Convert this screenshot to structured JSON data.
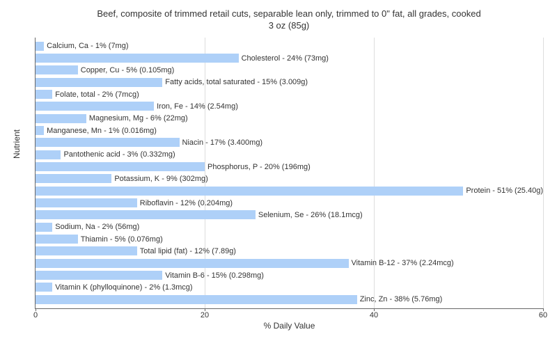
{
  "chart": {
    "type": "bar-horizontal",
    "title_line1": "Beef, composite of trimmed retail cuts, separable lean only, trimmed to 0\" fat, all grades, cooked",
    "title_line2": "3 oz (85g)",
    "title_fontsize": 13,
    "ylabel": "Nutrient",
    "xlabel": "% Daily Value",
    "label_fontsize": 12,
    "xlim": [
      0,
      60
    ],
    "xticks": [
      0,
      20,
      40,
      60
    ],
    "tick_fontsize": 11,
    "bar_color": "#aed0f8",
    "background_color": "#ffffff",
    "grid_color": "#dddddd",
    "axis_color": "#666666",
    "text_color": "#333333",
    "bar_label_fontsize": 11,
    "nutrients": [
      {
        "label": "Calcium, Ca - 1% (7mg)",
        "value": 1
      },
      {
        "label": "Cholesterol - 24% (73mg)",
        "value": 24
      },
      {
        "label": "Copper, Cu - 5% (0.105mg)",
        "value": 5
      },
      {
        "label": "Fatty acids, total saturated - 15% (3.009g)",
        "value": 15
      },
      {
        "label": "Folate, total - 2% (7mcg)",
        "value": 2
      },
      {
        "label": "Iron, Fe - 14% (2.54mg)",
        "value": 14
      },
      {
        "label": "Magnesium, Mg - 6% (22mg)",
        "value": 6
      },
      {
        "label": "Manganese, Mn - 1% (0.016mg)",
        "value": 1
      },
      {
        "label": "Niacin - 17% (3.400mg)",
        "value": 17
      },
      {
        "label": "Pantothenic acid - 3% (0.332mg)",
        "value": 3
      },
      {
        "label": "Phosphorus, P - 20% (196mg)",
        "value": 20
      },
      {
        "label": "Potassium, K - 9% (302mg)",
        "value": 9
      },
      {
        "label": "Protein - 51% (25.40g)",
        "value": 51
      },
      {
        "label": "Riboflavin - 12% (0.204mg)",
        "value": 12
      },
      {
        "label": "Selenium, Se - 26% (18.1mcg)",
        "value": 26
      },
      {
        "label": "Sodium, Na - 2% (56mg)",
        "value": 2
      },
      {
        "label": "Thiamin - 5% (0.076mg)",
        "value": 5
      },
      {
        "label": "Total lipid (fat) - 12% (7.89g)",
        "value": 12
      },
      {
        "label": "Vitamin B-12 - 37% (2.24mcg)",
        "value": 37
      },
      {
        "label": "Vitamin B-6 - 15% (0.298mg)",
        "value": 15
      },
      {
        "label": "Vitamin K (phylloquinone) - 2% (1.3mcg)",
        "value": 2
      },
      {
        "label": "Zinc, Zn - 38% (5.76mg)",
        "value": 38
      }
    ]
  }
}
